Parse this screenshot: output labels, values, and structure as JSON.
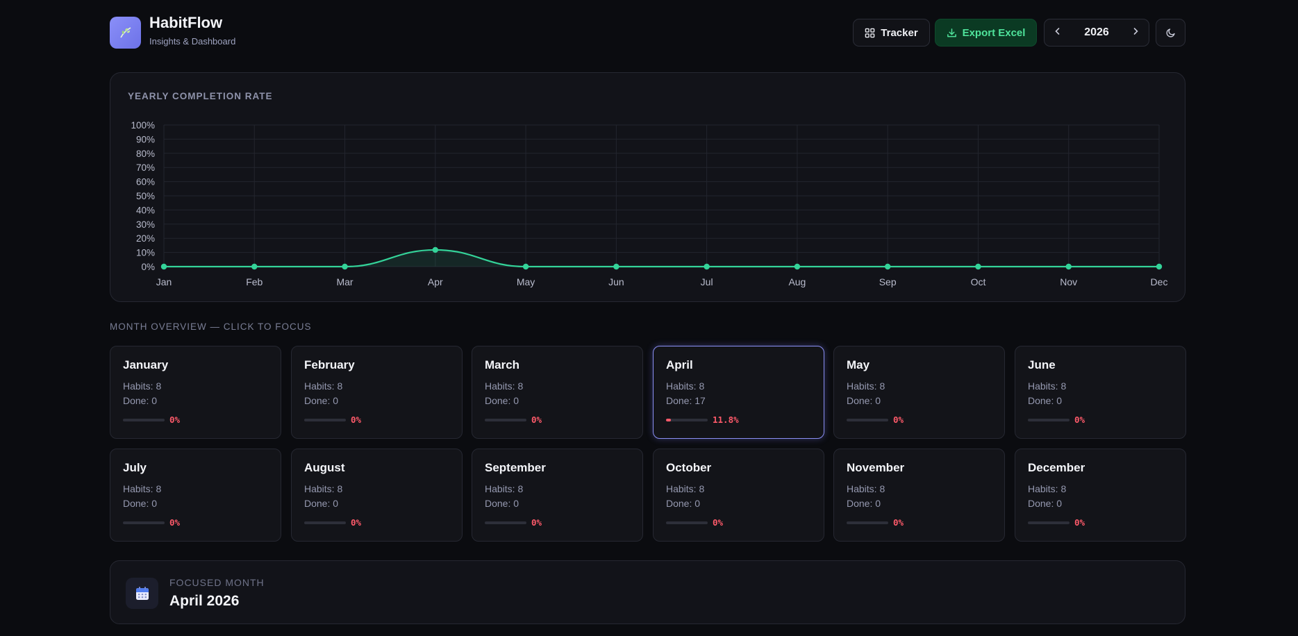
{
  "header": {
    "app_name": "HabitFlow",
    "subtitle": "Insights & Dashboard",
    "tracker_label": "Tracker",
    "export_label": "Export Excel",
    "year": "2026",
    "prev_icon": "chevron-left-icon",
    "next_icon": "chevron-right-icon",
    "theme_icon": "moon-icon",
    "logo_icon": "leaf-icon"
  },
  "colors": {
    "accent": "#8b8ff5",
    "line": "#34d399",
    "danger": "#ff5a6a",
    "export_text": "#4fe39b"
  },
  "chart_data": {
    "type": "area",
    "title": "YEARLY COMPLETION RATE",
    "x": [
      "Jan",
      "Feb",
      "Mar",
      "Apr",
      "May",
      "Jun",
      "Jul",
      "Aug",
      "Sep",
      "Oct",
      "Nov",
      "Dec"
    ],
    "series": [
      {
        "values": [
          0,
          0,
          0,
          11.8,
          0,
          0,
          0,
          0,
          0,
          0,
          0,
          0
        ]
      }
    ],
    "y_ticks": [
      "0%",
      "10%",
      "20%",
      "30%",
      "40%",
      "50%",
      "60%",
      "70%",
      "80%",
      "90%",
      "100%"
    ],
    "ylim": [
      0,
      100
    ],
    "grid": true,
    "smooth": true
  },
  "overview": {
    "label": "MONTH OVERVIEW — CLICK TO FOCUS",
    "months": [
      {
        "name": "January",
        "habits": "Habits: 8",
        "done": "Done: 0",
        "pct": "0%",
        "rate": 0
      },
      {
        "name": "February",
        "habits": "Habits: 8",
        "done": "Done: 0",
        "pct": "0%",
        "rate": 0
      },
      {
        "name": "March",
        "habits": "Habits: 8",
        "done": "Done: 0",
        "pct": "0%",
        "rate": 0
      },
      {
        "name": "April",
        "habits": "Habits: 8",
        "done": "Done: 17",
        "pct": "11.8%",
        "rate": 11.8,
        "focused": true
      },
      {
        "name": "May",
        "habits": "Habits: 8",
        "done": "Done: 0",
        "pct": "0%",
        "rate": 0
      },
      {
        "name": "June",
        "habits": "Habits: 8",
        "done": "Done: 0",
        "pct": "0%",
        "rate": 0
      },
      {
        "name": "July",
        "habits": "Habits: 8",
        "done": "Done: 0",
        "pct": "0%",
        "rate": 0
      },
      {
        "name": "August",
        "habits": "Habits: 8",
        "done": "Done: 0",
        "pct": "0%",
        "rate": 0
      },
      {
        "name": "September",
        "habits": "Habits: 8",
        "done": "Done: 0",
        "pct": "0%",
        "rate": 0
      },
      {
        "name": "October",
        "habits": "Habits: 8",
        "done": "Done: 0",
        "pct": "0%",
        "rate": 0
      },
      {
        "name": "November",
        "habits": "Habits: 8",
        "done": "Done: 0",
        "pct": "0%",
        "rate": 0
      },
      {
        "name": "December",
        "habits": "Habits: 8",
        "done": "Done: 0",
        "pct": "0%",
        "rate": 0
      }
    ]
  },
  "focus": {
    "label": "FOCUSED MONTH",
    "title": "April 2026",
    "icon": "calendar-icon"
  }
}
